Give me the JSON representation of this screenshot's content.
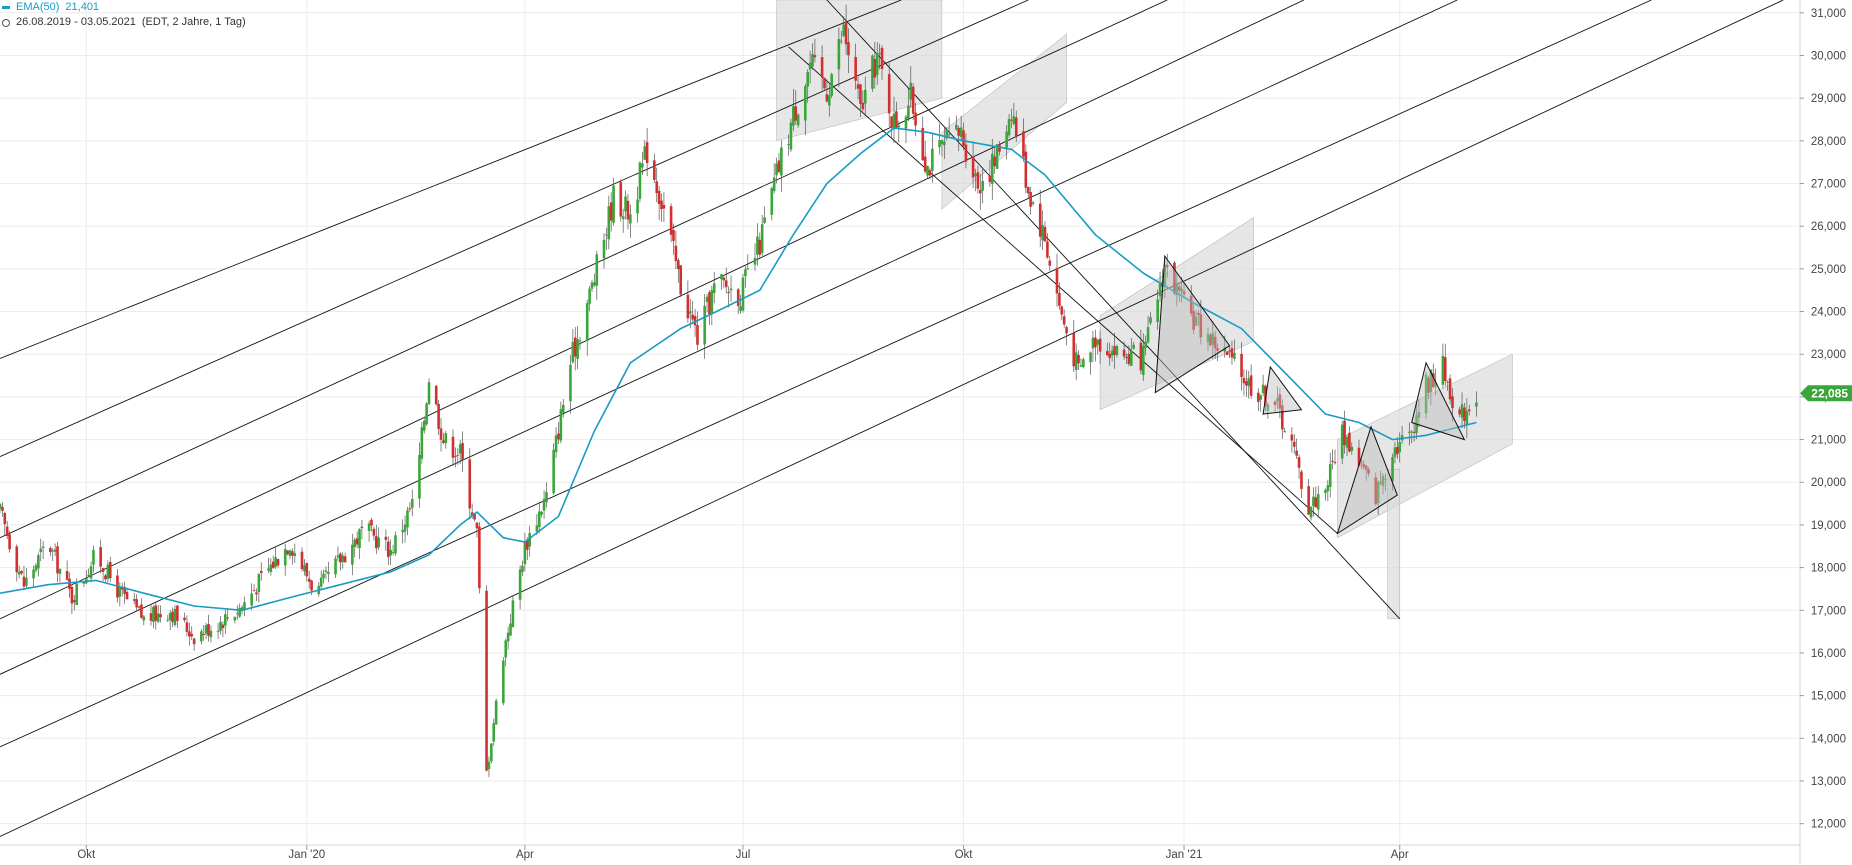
{
  "legend": {
    "indicator_label": "EMA(50)",
    "indicator_value": "21,401",
    "range_text": "26.08.2019 - 03.05.2021",
    "range_meta": "(EDT, 2 Jahre, 1 Tag)"
  },
  "colors": {
    "up": "#3aa63a",
    "down": "#d0302f",
    "ema": "#1a9bc4",
    "grid": "#ececec",
    "trendline": "#111111",
    "zone_fill": "#d9d9d9",
    "badge": "#3aa63a"
  },
  "chart_data": {
    "type": "candlestick",
    "x_labels": [
      {
        "label": "Okt",
        "date": "2019-10-01"
      },
      {
        "label": "Jan '20",
        "date": "2020-01-01"
      },
      {
        "label": "Apr",
        "date": "2020-04-01"
      },
      {
        "label": "Jul",
        "date": "2020-07-01"
      },
      {
        "label": "Okt",
        "date": "2020-10-01"
      },
      {
        "label": "Jan '21",
        "date": "2021-01-01"
      },
      {
        "label": "Apr",
        "date": "2021-04-01"
      }
    ],
    "y_ticks": [
      "12,000",
      "13,000",
      "14,000",
      "15,000",
      "16,000",
      "17,000",
      "18,000",
      "19,000",
      "20,000",
      "21,000",
      "22,000",
      "23,000",
      "24,000",
      "25,000",
      "26,000",
      "27,000",
      "28,000",
      "29,000",
      "30,000",
      "31,000"
    ],
    "ylim": [
      11500,
      31300
    ],
    "xlim": [
      "2019-08-26",
      "2021-09-15"
    ],
    "last_price": "22,085",
    "last_price_value": 22085,
    "close_path": [
      [
        "2019-08-26",
        19300
      ],
      [
        "2019-09-05",
        17600
      ],
      [
        "2019-09-15",
        18600
      ],
      [
        "2019-09-25",
        17300
      ],
      [
        "2019-10-05",
        18300
      ],
      [
        "2019-10-15",
        17400
      ],
      [
        "2019-10-25",
        16800
      ],
      [
        "2019-11-05",
        17000
      ],
      [
        "2019-11-15",
        16400
      ],
      [
        "2019-11-25",
        16700
      ],
      [
        "2019-12-05",
        17100
      ],
      [
        "2019-12-15",
        17900
      ],
      [
        "2019-12-25",
        18600
      ],
      [
        "2020-01-05",
        17400
      ],
      [
        "2020-01-15",
        18200
      ],
      [
        "2020-01-25",
        18900
      ],
      [
        "2020-02-05",
        18400
      ],
      [
        "2020-02-15",
        19600
      ],
      [
        "2020-02-21",
        22500
      ],
      [
        "2020-02-27",
        21000
      ],
      [
        "2020-03-05",
        20700
      ],
      [
        "2020-03-12",
        18800
      ],
      [
        "2020-03-16",
        13200
      ],
      [
        "2020-03-23",
        16000
      ],
      [
        "2020-04-01",
        18500
      ],
      [
        "2020-04-10",
        19700
      ],
      [
        "2020-04-20",
        22800
      ],
      [
        "2020-04-30",
        24800
      ],
      [
        "2020-05-08",
        26700
      ],
      [
        "2020-05-15",
        26300
      ],
      [
        "2020-05-22",
        27800
      ],
      [
        "2020-05-29",
        26400
      ],
      [
        "2020-06-05",
        24600
      ],
      [
        "2020-06-12",
        23400
      ],
      [
        "2020-06-20",
        24700
      ],
      [
        "2020-06-30",
        24400
      ],
      [
        "2020-07-08",
        25600
      ],
      [
        "2020-07-15",
        27200
      ],
      [
        "2020-07-22",
        28600
      ],
      [
        "2020-07-29",
        29800
      ],
      [
        "2020-08-05",
        29200
      ],
      [
        "2020-08-12",
        30600
      ],
      [
        "2020-08-19",
        28700
      ],
      [
        "2020-08-26",
        30000
      ],
      [
        "2020-09-02",
        28400
      ],
      [
        "2020-09-09",
        29000
      ],
      [
        "2020-09-16",
        27400
      ],
      [
        "2020-09-23",
        27900
      ],
      [
        "2020-09-30",
        28200
      ],
      [
        "2020-10-07",
        27000
      ],
      [
        "2020-10-14",
        27500
      ],
      [
        "2020-10-21",
        28800
      ],
      [
        "2020-10-28",
        26900
      ],
      [
        "2020-11-04",
        25700
      ],
      [
        "2020-11-11",
        23900
      ],
      [
        "2020-11-18",
        22600
      ],
      [
        "2020-11-25",
        23400
      ],
      [
        "2020-12-05",
        23000
      ],
      [
        "2020-12-15",
        22900
      ],
      [
        "2020-12-24",
        25100
      ],
      [
        "2021-01-01",
        24100
      ],
      [
        "2021-01-10",
        23500
      ],
      [
        "2021-01-20",
        22900
      ],
      [
        "2021-01-30",
        22200
      ],
      [
        "2021-02-08",
        21900
      ],
      [
        "2021-02-15",
        20900
      ],
      [
        "2021-02-22",
        19400
      ],
      [
        "2021-03-01",
        19900
      ],
      [
        "2021-03-08",
        21200
      ],
      [
        "2021-03-15",
        20500
      ],
      [
        "2021-03-22",
        19700
      ],
      [
        "2021-03-29",
        20800
      ],
      [
        "2021-04-05",
        21100
      ],
      [
        "2021-04-12",
        22300
      ],
      [
        "2021-04-19",
        22700
      ],
      [
        "2021-04-26",
        21500
      ],
      [
        "2021-05-03",
        22085
      ]
    ],
    "ema_path": [
      [
        "2019-08-26",
        17400
      ],
      [
        "2019-09-15",
        17600
      ],
      [
        "2019-10-05",
        17700
      ],
      [
        "2019-10-25",
        17400
      ],
      [
        "2019-11-15",
        17100
      ],
      [
        "2019-12-05",
        17000
      ],
      [
        "2019-12-25",
        17300
      ],
      [
        "2020-01-15",
        17600
      ],
      [
        "2020-02-05",
        17900
      ],
      [
        "2020-02-21",
        18300
      ],
      [
        "2020-03-05",
        19000
      ],
      [
        "2020-03-12",
        19300
      ],
      [
        "2020-03-23",
        18700
      ],
      [
        "2020-04-01",
        18600
      ],
      [
        "2020-04-15",
        19200
      ],
      [
        "2020-04-30",
        21200
      ],
      [
        "2020-05-15",
        22800
      ],
      [
        "2020-06-05",
        23600
      ],
      [
        "2020-06-20",
        24000
      ],
      [
        "2020-07-08",
        24500
      ],
      [
        "2020-07-22",
        25800
      ],
      [
        "2020-08-05",
        27000
      ],
      [
        "2020-08-19",
        27700
      ],
      [
        "2020-09-02",
        28300
      ],
      [
        "2020-09-16",
        28200
      ],
      [
        "2020-10-01",
        28000
      ],
      [
        "2020-10-21",
        27800
      ],
      [
        "2020-11-04",
        27200
      ],
      [
        "2020-11-25",
        25800
      ],
      [
        "2020-12-15",
        24900
      ],
      [
        "2021-01-05",
        24200
      ],
      [
        "2021-01-25",
        23600
      ],
      [
        "2021-02-15",
        22400
      ],
      [
        "2021-03-01",
        21600
      ],
      [
        "2021-03-15",
        21400
      ],
      [
        "2021-03-29",
        21000
      ],
      [
        "2021-04-12",
        21100
      ],
      [
        "2021-05-03",
        21400
      ]
    ],
    "trend_lines": [
      [
        [
          "2019-08-26",
          22900
        ],
        [
          "2020-09-05",
          31300
        ]
      ],
      [
        [
          "2019-08-26",
          20600
        ],
        [
          "2020-10-28",
          31300
        ]
      ],
      [
        [
          "2019-08-26",
          18700
        ],
        [
          "2020-12-25",
          31300
        ]
      ],
      [
        [
          "2019-08-26",
          16800
        ],
        [
          "2021-02-20",
          31300
        ]
      ],
      [
        [
          "2019-08-26",
          15500
        ],
        [
          "2021-04-25",
          31300
        ]
      ],
      [
        [
          "2019-08-26",
          13800
        ],
        [
          "2021-07-15",
          31300
        ]
      ],
      [
        [
          "2019-08-26",
          11700
        ],
        [
          "2021-09-08",
          31300
        ]
      ]
    ],
    "down_channel": [
      [
        [
          "2020-08-05",
          31300
        ],
        [
          "2021-04-01",
          16800
        ]
      ],
      [
        [
          "2020-07-20",
          30200
        ],
        [
          "2021-03-06",
          18800
        ]
      ]
    ],
    "zones": [
      [
        [
          "2020-07-15",
          31300
        ],
        [
          "2020-09-22",
          31300
        ],
        [
          "2020-09-22",
          29000
        ],
        [
          "2020-07-15",
          28000
        ]
      ],
      [
        [
          "2020-09-22",
          28200
        ],
        [
          "2020-11-13",
          30500
        ],
        [
          "2020-11-13",
          28900
        ],
        [
          "2020-09-22",
          26400
        ]
      ],
      [
        [
          "2020-11-27",
          23900
        ],
        [
          "2021-01-30",
          26200
        ],
        [
          "2021-01-30",
          23300
        ],
        [
          "2020-11-27",
          21700
        ]
      ],
      [
        [
          "2021-03-06",
          21000
        ],
        [
          "2021-05-18",
          23000
        ],
        [
          "2021-05-18",
          20900
        ],
        [
          "2021-03-06",
          18700
        ]
      ],
      [
        [
          "2021-03-27",
          20300
        ],
        [
          "2021-04-01",
          20300
        ],
        [
          "2021-04-01",
          16800
        ],
        [
          "2021-03-27",
          16800
        ]
      ]
    ],
    "triangles": [
      [
        [
          "2020-12-24",
          25300
        ],
        [
          "2020-12-20",
          22100
        ],
        [
          "2021-01-20",
          23200
        ]
      ],
      [
        [
          "2021-02-06",
          22700
        ],
        [
          "2021-02-03",
          21600
        ],
        [
          "2021-02-19",
          21700
        ]
      ],
      [
        [
          "2021-03-06",
          18800
        ],
        [
          "2021-03-20",
          21300
        ],
        [
          "2021-03-31",
          19700
        ]
      ],
      [
        [
          "2021-04-12",
          22800
        ],
        [
          "2021-04-06",
          21400
        ],
        [
          "2021-04-28",
          21000
        ]
      ]
    ]
  }
}
